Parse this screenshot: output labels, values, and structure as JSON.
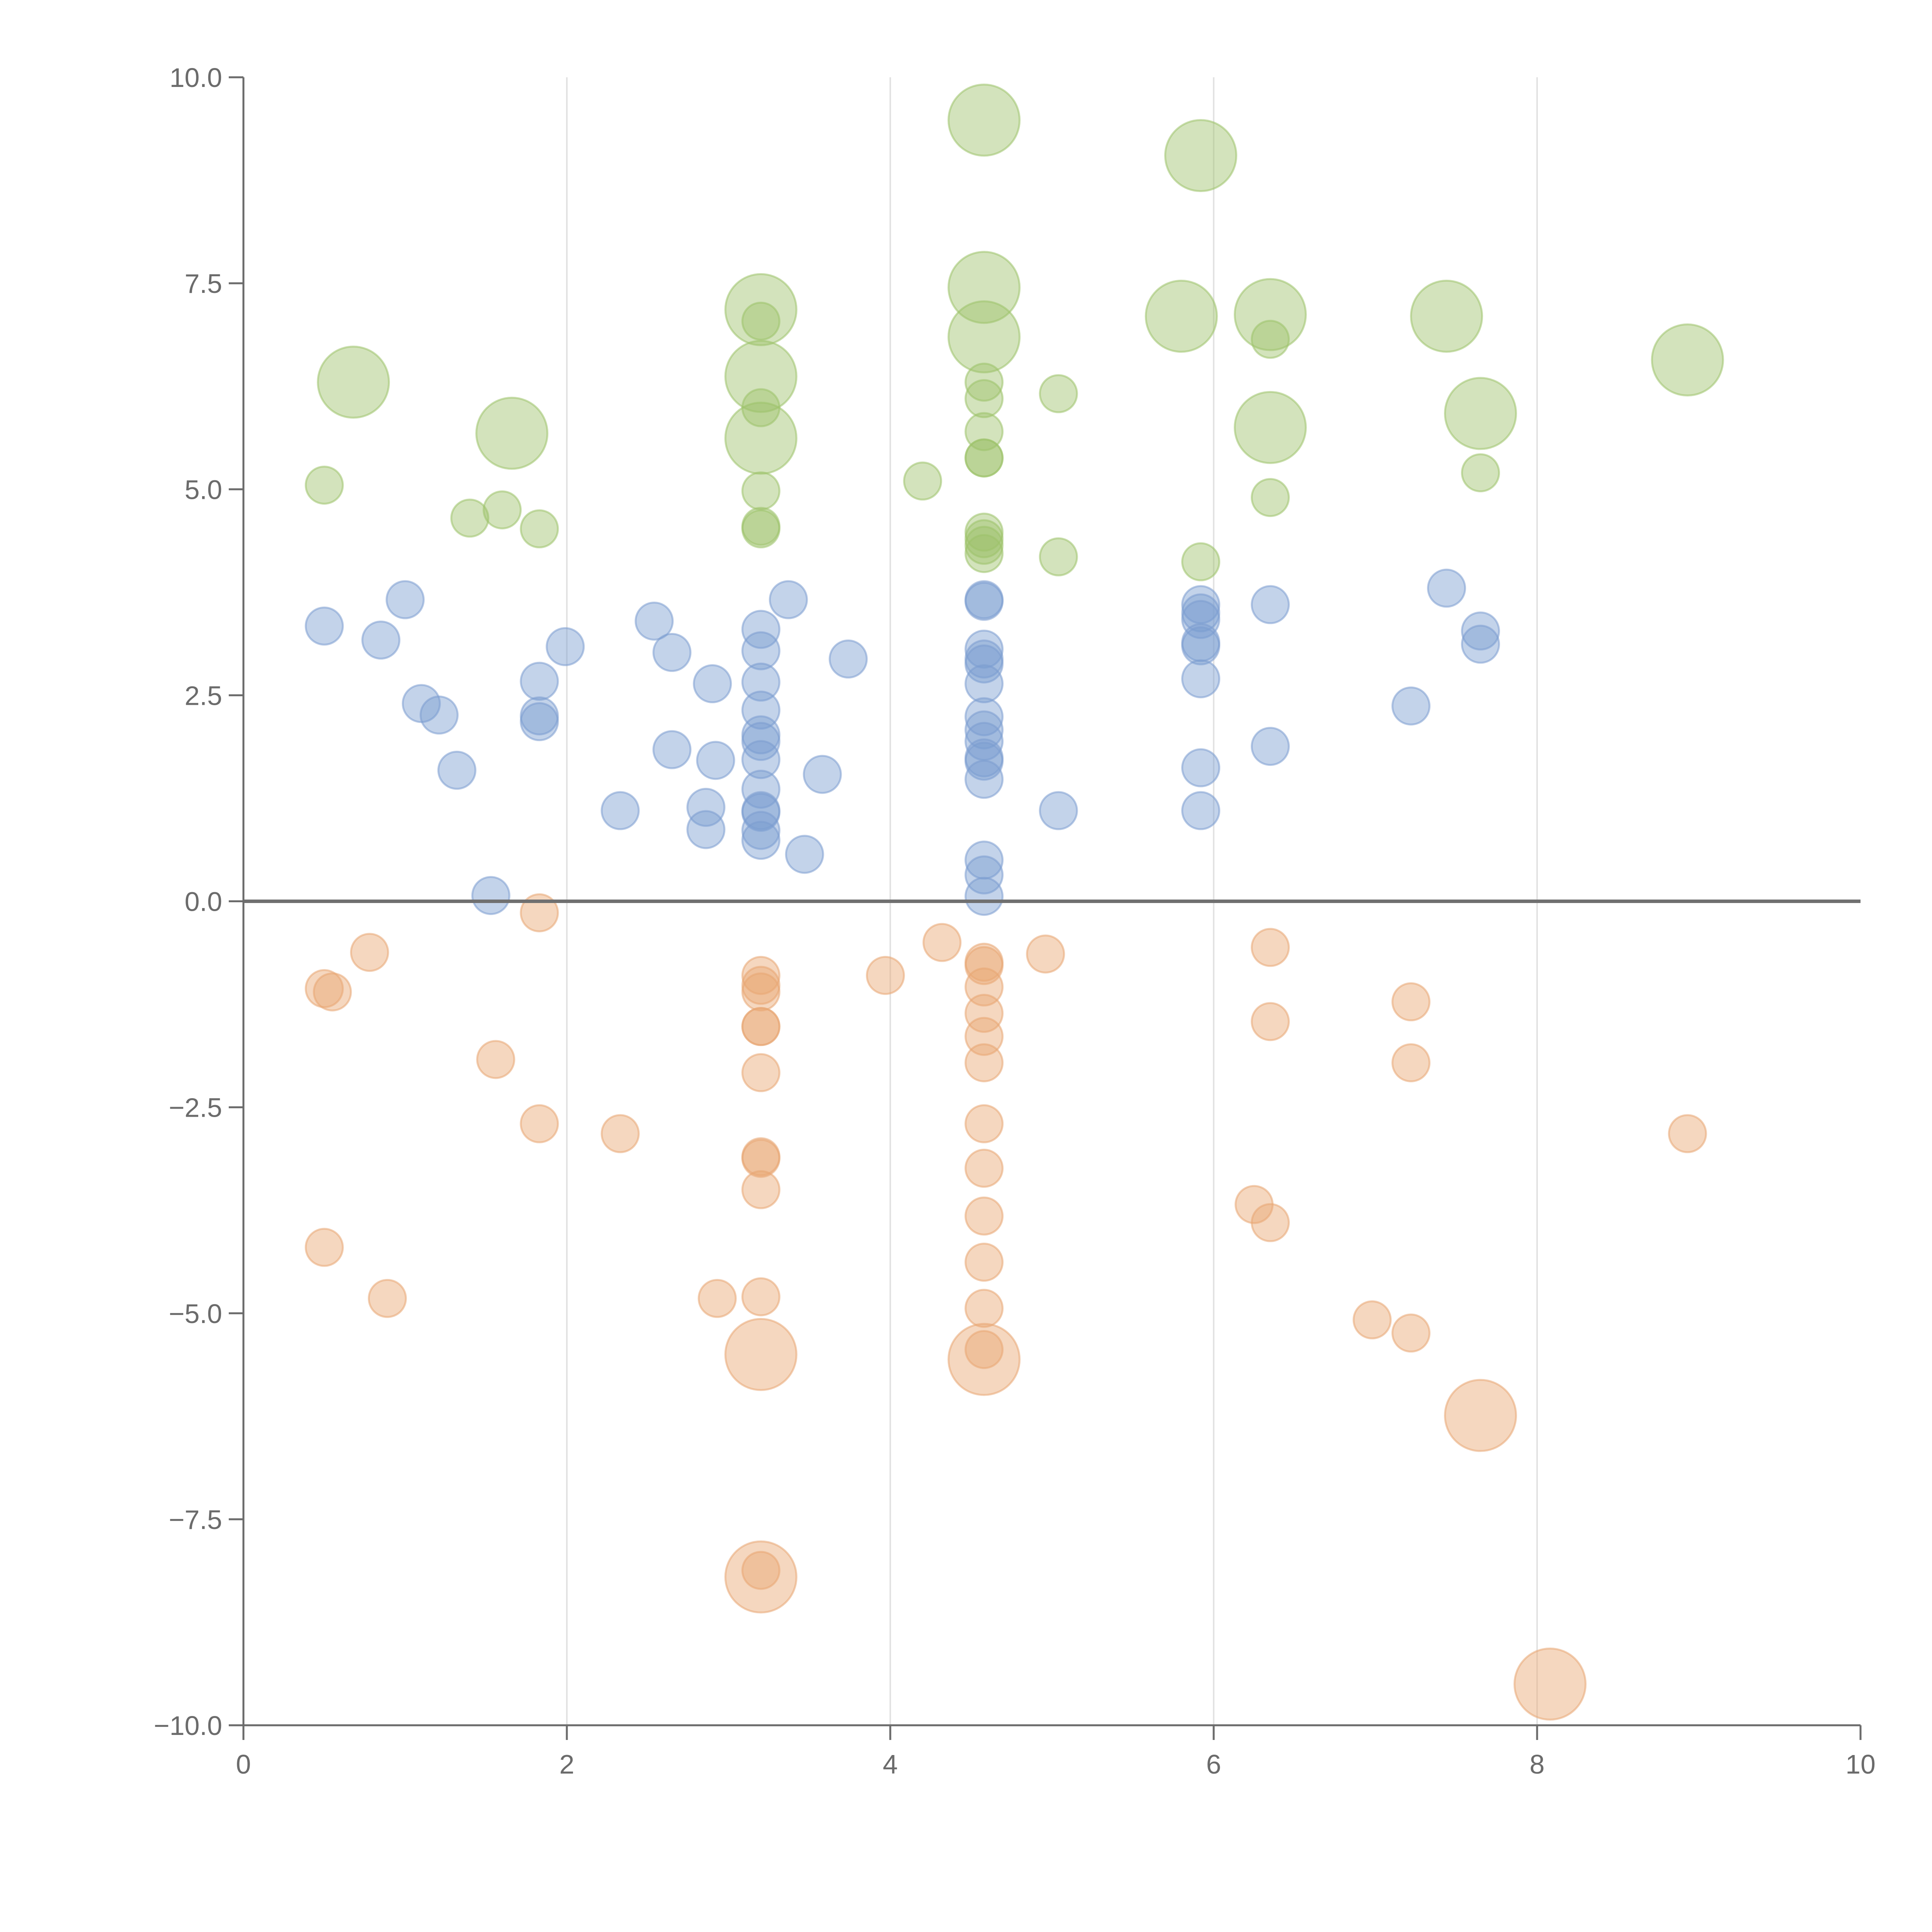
{
  "chart_data": {
    "type": "scatter",
    "title": "",
    "xlabel": "",
    "ylabel": "",
    "xlim": [
      0,
      10
    ],
    "ylim": [
      -10,
      10
    ],
    "x_ticks": [
      0,
      2,
      4,
      6,
      8,
      10
    ],
    "x_tick_labels": [
      "0",
      "2",
      "4",
      "6",
      "8",
      "10"
    ],
    "y_ticks": [
      10,
      7.5,
      5,
      2.5,
      0,
      -2.5,
      -5,
      -7.5,
      -10
    ],
    "y_tick_labels": [
      "10.0",
      "7.5",
      "5.0",
      "2.5",
      "0.0",
      "−2.5",
      "−5.0",
      "−7.5",
      "−10.0"
    ],
    "vertical_grid": true,
    "horizontal_grid": false,
    "zero_line": true,
    "legend": "none",
    "series": [
      {
        "color": "#9dc26a",
        "points": [
          {
            "x": 0.5,
            "y": 5.05,
            "size": 1
          },
          {
            "x": 0.68,
            "y": 6.3,
            "size": 3
          },
          {
            "x": 1.4,
            "y": 4.65,
            "size": 1
          },
          {
            "x": 1.6,
            "y": 4.75,
            "size": 1
          },
          {
            "x": 1.66,
            "y": 5.68,
            "size": 3
          },
          {
            "x": 1.83,
            "y": 4.52,
            "size": 1
          },
          {
            "x": 3.2,
            "y": 7.18,
            "size": 3
          },
          {
            "x": 3.2,
            "y": 7.04,
            "size": 1
          },
          {
            "x": 3.2,
            "y": 6.37,
            "size": 3
          },
          {
            "x": 3.2,
            "y": 5.99,
            "size": 1
          },
          {
            "x": 3.2,
            "y": 5.62,
            "size": 3
          },
          {
            "x": 3.2,
            "y": 4.98,
            "size": 1
          },
          {
            "x": 3.2,
            "y": 4.55,
            "size": 1
          },
          {
            "x": 3.2,
            "y": 4.52,
            "size": 1
          },
          {
            "x": 4.2,
            "y": 5.1,
            "size": 1
          },
          {
            "x": 4.58,
            "y": 9.48,
            "size": 3
          },
          {
            "x": 4.58,
            "y": 7.45,
            "size": 3
          },
          {
            "x": 4.58,
            "y": 6.85,
            "size": 3
          },
          {
            "x": 4.58,
            "y": 6.3,
            "size": 1
          },
          {
            "x": 4.58,
            "y": 6.1,
            "size": 1
          },
          {
            "x": 4.58,
            "y": 5.7,
            "size": 1
          },
          {
            "x": 4.58,
            "y": 5.38,
            "size": 1
          },
          {
            "x": 4.58,
            "y": 5.38,
            "size": 1
          },
          {
            "x": 4.58,
            "y": 4.48,
            "size": 1
          },
          {
            "x": 4.58,
            "y": 4.4,
            "size": 1
          },
          {
            "x": 4.58,
            "y": 4.32,
            "size": 1
          },
          {
            "x": 4.58,
            "y": 4.22,
            "size": 1
          },
          {
            "x": 5.04,
            "y": 6.16,
            "size": 1
          },
          {
            "x": 5.04,
            "y": 4.18,
            "size": 1
          },
          {
            "x": 5.8,
            "y": 7.1,
            "size": 3
          },
          {
            "x": 5.92,
            "y": 9.05,
            "size": 3
          },
          {
            "x": 5.92,
            "y": 4.12,
            "size": 1
          },
          {
            "x": 6.35,
            "y": 7.12,
            "size": 3
          },
          {
            "x": 6.35,
            "y": 6.82,
            "size": 1
          },
          {
            "x": 6.35,
            "y": 5.75,
            "size": 3
          },
          {
            "x": 6.35,
            "y": 4.9,
            "size": 1
          },
          {
            "x": 7.44,
            "y": 7.1,
            "size": 3
          },
          {
            "x": 7.65,
            "y": 5.92,
            "size": 3
          },
          {
            "x": 7.65,
            "y": 5.2,
            "size": 1
          },
          {
            "x": 8.93,
            "y": 6.57,
            "size": 3
          }
        ]
      },
      {
        "color": "#7b9dd0",
        "points": [
          {
            "x": 0.5,
            "y": 3.34,
            "size": 1
          },
          {
            "x": 0.85,
            "y": 3.17,
            "size": 1
          },
          {
            "x": 1.0,
            "y": 3.66,
            "size": 1
          },
          {
            "x": 1.1,
            "y": 2.4,
            "size": 1
          },
          {
            "x": 1.21,
            "y": 2.26,
            "size": 1
          },
          {
            "x": 1.32,
            "y": 1.59,
            "size": 1
          },
          {
            "x": 1.53,
            "y": 0.07,
            "size": 1
          },
          {
            "x": 1.83,
            "y": 2.67,
            "size": 1
          },
          {
            "x": 1.83,
            "y": 2.25,
            "size": 1
          },
          {
            "x": 1.83,
            "y": 2.18,
            "size": 1
          },
          {
            "x": 1.99,
            "y": 3.09,
            "size": 1
          },
          {
            "x": 2.33,
            "y": 1.1,
            "size": 1
          },
          {
            "x": 2.54,
            "y": 3.4,
            "size": 1
          },
          {
            "x": 2.65,
            "y": 3.02,
            "size": 1
          },
          {
            "x": 2.65,
            "y": 1.84,
            "size": 1
          },
          {
            "x": 2.86,
            "y": 1.14,
            "size": 1
          },
          {
            "x": 2.86,
            "y": 0.87,
            "size": 1
          },
          {
            "x": 2.9,
            "y": 2.64,
            "size": 1
          },
          {
            "x": 2.92,
            "y": 1.71,
            "size": 1
          },
          {
            "x": 3.2,
            "y": 3.3,
            "size": 1
          },
          {
            "x": 3.2,
            "y": 3.04,
            "size": 1
          },
          {
            "x": 3.2,
            "y": 2.66,
            "size": 1
          },
          {
            "x": 3.2,
            "y": 2.32,
            "size": 1
          },
          {
            "x": 3.2,
            "y": 2.02,
            "size": 1
          },
          {
            "x": 3.2,
            "y": 1.94,
            "size": 1
          },
          {
            "x": 3.2,
            "y": 1.72,
            "size": 1
          },
          {
            "x": 3.2,
            "y": 1.36,
            "size": 1
          },
          {
            "x": 3.2,
            "y": 1.1,
            "size": 1
          },
          {
            "x": 3.2,
            "y": 1.08,
            "size": 1
          },
          {
            "x": 3.2,
            "y": 0.86,
            "size": 1
          },
          {
            "x": 3.2,
            "y": 0.74,
            "size": 1
          },
          {
            "x": 3.37,
            "y": 3.66,
            "size": 1
          },
          {
            "x": 3.47,
            "y": 0.57,
            "size": 1
          },
          {
            "x": 3.58,
            "y": 1.54,
            "size": 1
          },
          {
            "x": 3.74,
            "y": 2.94,
            "size": 1
          },
          {
            "x": 4.58,
            "y": 3.66,
            "size": 1
          },
          {
            "x": 4.58,
            "y": 3.64,
            "size": 1
          },
          {
            "x": 4.58,
            "y": 3.06,
            "size": 1
          },
          {
            "x": 4.58,
            "y": 2.94,
            "size": 1
          },
          {
            "x": 4.58,
            "y": 2.88,
            "size": 1
          },
          {
            "x": 4.58,
            "y": 2.64,
            "size": 1
          },
          {
            "x": 4.58,
            "y": 2.24,
            "size": 1
          },
          {
            "x": 4.58,
            "y": 2.08,
            "size": 1
          },
          {
            "x": 4.58,
            "y": 1.94,
            "size": 1
          },
          {
            "x": 4.58,
            "y": 1.74,
            "size": 1
          },
          {
            "x": 4.58,
            "y": 1.7,
            "size": 1
          },
          {
            "x": 4.58,
            "y": 1.48,
            "size": 1
          },
          {
            "x": 4.58,
            "y": 0.5,
            "size": 1
          },
          {
            "x": 4.58,
            "y": 0.32,
            "size": 1
          },
          {
            "x": 4.58,
            "y": 0.06,
            "size": 1
          },
          {
            "x": 5.04,
            "y": 1.1,
            "size": 1
          },
          {
            "x": 5.92,
            "y": 3.6,
            "size": 1
          },
          {
            "x": 5.92,
            "y": 3.5,
            "size": 1
          },
          {
            "x": 5.92,
            "y": 3.42,
            "size": 1
          },
          {
            "x": 5.92,
            "y": 3.14,
            "size": 1
          },
          {
            "x": 5.92,
            "y": 3.1,
            "size": 1
          },
          {
            "x": 5.92,
            "y": 2.7,
            "size": 1
          },
          {
            "x": 5.92,
            "y": 1.62,
            "size": 1
          },
          {
            "x": 5.92,
            "y": 1.1,
            "size": 1
          },
          {
            "x": 6.35,
            "y": 3.6,
            "size": 1
          },
          {
            "x": 6.35,
            "y": 1.88,
            "size": 1
          },
          {
            "x": 7.22,
            "y": 2.37,
            "size": 1
          },
          {
            "x": 7.44,
            "y": 3.8,
            "size": 1
          },
          {
            "x": 7.65,
            "y": 3.28,
            "size": 1
          },
          {
            "x": 7.65,
            "y": 3.12,
            "size": 1
          }
        ]
      },
      {
        "color": "#e8a672",
        "points": [
          {
            "x": 0.5,
            "y": -1.06,
            "size": 1
          },
          {
            "x": 0.55,
            "y": -1.1,
            "size": 1
          },
          {
            "x": 0.5,
            "y": -4.2,
            "size": 1
          },
          {
            "x": 0.78,
            "y": -0.62,
            "size": 1
          },
          {
            "x": 0.89,
            "y": -4.82,
            "size": 1
          },
          {
            "x": 1.56,
            "y": -1.92,
            "size": 1
          },
          {
            "x": 1.83,
            "y": -0.14,
            "size": 1
          },
          {
            "x": 1.83,
            "y": -2.7,
            "size": 1
          },
          {
            "x": 2.33,
            "y": -2.82,
            "size": 1
          },
          {
            "x": 2.93,
            "y": -4.82,
            "size": 1
          },
          {
            "x": 3.2,
            "y": -0.9,
            "size": 1
          },
          {
            "x": 3.2,
            "y": -1.02,
            "size": 1
          },
          {
            "x": 3.2,
            "y": -1.1,
            "size": 1
          },
          {
            "x": 3.2,
            "y": -1.52,
            "size": 1
          },
          {
            "x": 3.2,
            "y": -1.52,
            "size": 1
          },
          {
            "x": 3.2,
            "y": -2.08,
            "size": 1
          },
          {
            "x": 3.2,
            "y": -3.1,
            "size": 1
          },
          {
            "x": 3.2,
            "y": -3.12,
            "size": 1
          },
          {
            "x": 3.2,
            "y": -3.5,
            "size": 1
          },
          {
            "x": 3.2,
            "y": -4.8,
            "size": 1
          },
          {
            "x": 3.2,
            "y": -5.5,
            "size": 3
          },
          {
            "x": 3.2,
            "y": -8.12,
            "size": 1
          },
          {
            "x": 3.2,
            "y": -8.2,
            "size": 3
          },
          {
            "x": 3.97,
            "y": -0.9,
            "size": 1
          },
          {
            "x": 4.32,
            "y": -0.5,
            "size": 1
          },
          {
            "x": 4.58,
            "y": -0.74,
            "size": 1
          },
          {
            "x": 4.58,
            "y": -0.78,
            "size": 1
          },
          {
            "x": 4.58,
            "y": -1.04,
            "size": 1
          },
          {
            "x": 4.58,
            "y": -1.36,
            "size": 1
          },
          {
            "x": 4.58,
            "y": -1.64,
            "size": 1
          },
          {
            "x": 4.58,
            "y": -1.96,
            "size": 1
          },
          {
            "x": 4.58,
            "y": -2.7,
            "size": 1
          },
          {
            "x": 4.58,
            "y": -3.24,
            "size": 1
          },
          {
            "x": 4.58,
            "y": -3.82,
            "size": 1
          },
          {
            "x": 4.58,
            "y": -4.38,
            "size": 1
          },
          {
            "x": 4.58,
            "y": -4.94,
            "size": 1
          },
          {
            "x": 4.58,
            "y": -5.44,
            "size": 1
          },
          {
            "x": 4.58,
            "y": -5.56,
            "size": 3
          },
          {
            "x": 4.96,
            "y": -0.64,
            "size": 1
          },
          {
            "x": 6.25,
            "y": -3.68,
            "size": 1
          },
          {
            "x": 6.35,
            "y": -0.56,
            "size": 1
          },
          {
            "x": 6.35,
            "y": -1.46,
            "size": 1
          },
          {
            "x": 6.35,
            "y": -3.9,
            "size": 1
          },
          {
            "x": 6.98,
            "y": -5.08,
            "size": 1
          },
          {
            "x": 7.22,
            "y": -1.22,
            "size": 1
          },
          {
            "x": 7.22,
            "y": -1.96,
            "size": 1
          },
          {
            "x": 7.22,
            "y": -5.24,
            "size": 1
          },
          {
            "x": 7.65,
            "y": -6.24,
            "size": 3
          },
          {
            "x": 8.08,
            "y": -9.5,
            "size": 3
          },
          {
            "x": 8.93,
            "y": -2.82,
            "size": 1
          }
        ]
      }
    ]
  }
}
